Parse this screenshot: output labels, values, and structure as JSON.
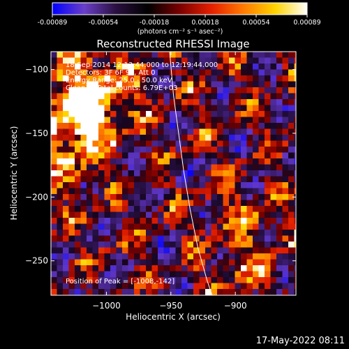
{
  "colorbar": {
    "ticks": [
      "-0.00089",
      "-0.00054",
      "-0.00018",
      "0.00018",
      "0.00054",
      "0.00089"
    ],
    "unit_label": "(photons cm⁻² s⁻¹ asec⁻²)",
    "colors": [
      "#0000ff",
      "#6a3fc8",
      "#2a1040",
      "#000000",
      "#7a0000",
      "#e62000",
      "#ff7a00",
      "#ffd400",
      "#ffffff"
    ]
  },
  "chart_data": {
    "type": "heatmap",
    "title": "Reconstructed RHESSI Image",
    "xlabel": "Heliocentric X (arcsec)",
    "ylabel": "Heliocentric Y (arcsec)",
    "xlim": [
      -1043,
      -853
    ],
    "ylim": [
      -277,
      -86
    ],
    "x_ticks": [
      -1000,
      -950,
      -900
    ],
    "y_ticks": [
      -100,
      -150,
      -200,
      -250
    ],
    "clim": [
      -0.00089,
      0.00089
    ],
    "colormap": "blue-purple-black-red-yellow-white",
    "limb_curve": [
      [
        -951,
        -86
      ],
      [
        -948,
        -120
      ],
      [
        -944,
        -150
      ],
      [
        -940,
        -180
      ],
      [
        -935,
        -210
      ],
      [
        -929,
        -240
      ],
      [
        -922,
        -265
      ],
      [
        -918,
        -277
      ]
    ],
    "annotations": {
      "time": "18-Sep-2014 12:13:44.000 to 12:19:44.000",
      "detectors": "Detectors: 3F 6F 9F, Att 0",
      "energy": "Energy Range: 25.0 - 50.0 keV",
      "method": "Clean     Total counts: 6.79E+03",
      "peak": "Position of Peak = [-1008,-142]"
    }
  },
  "timestamp": "17-May-2022 08:11"
}
